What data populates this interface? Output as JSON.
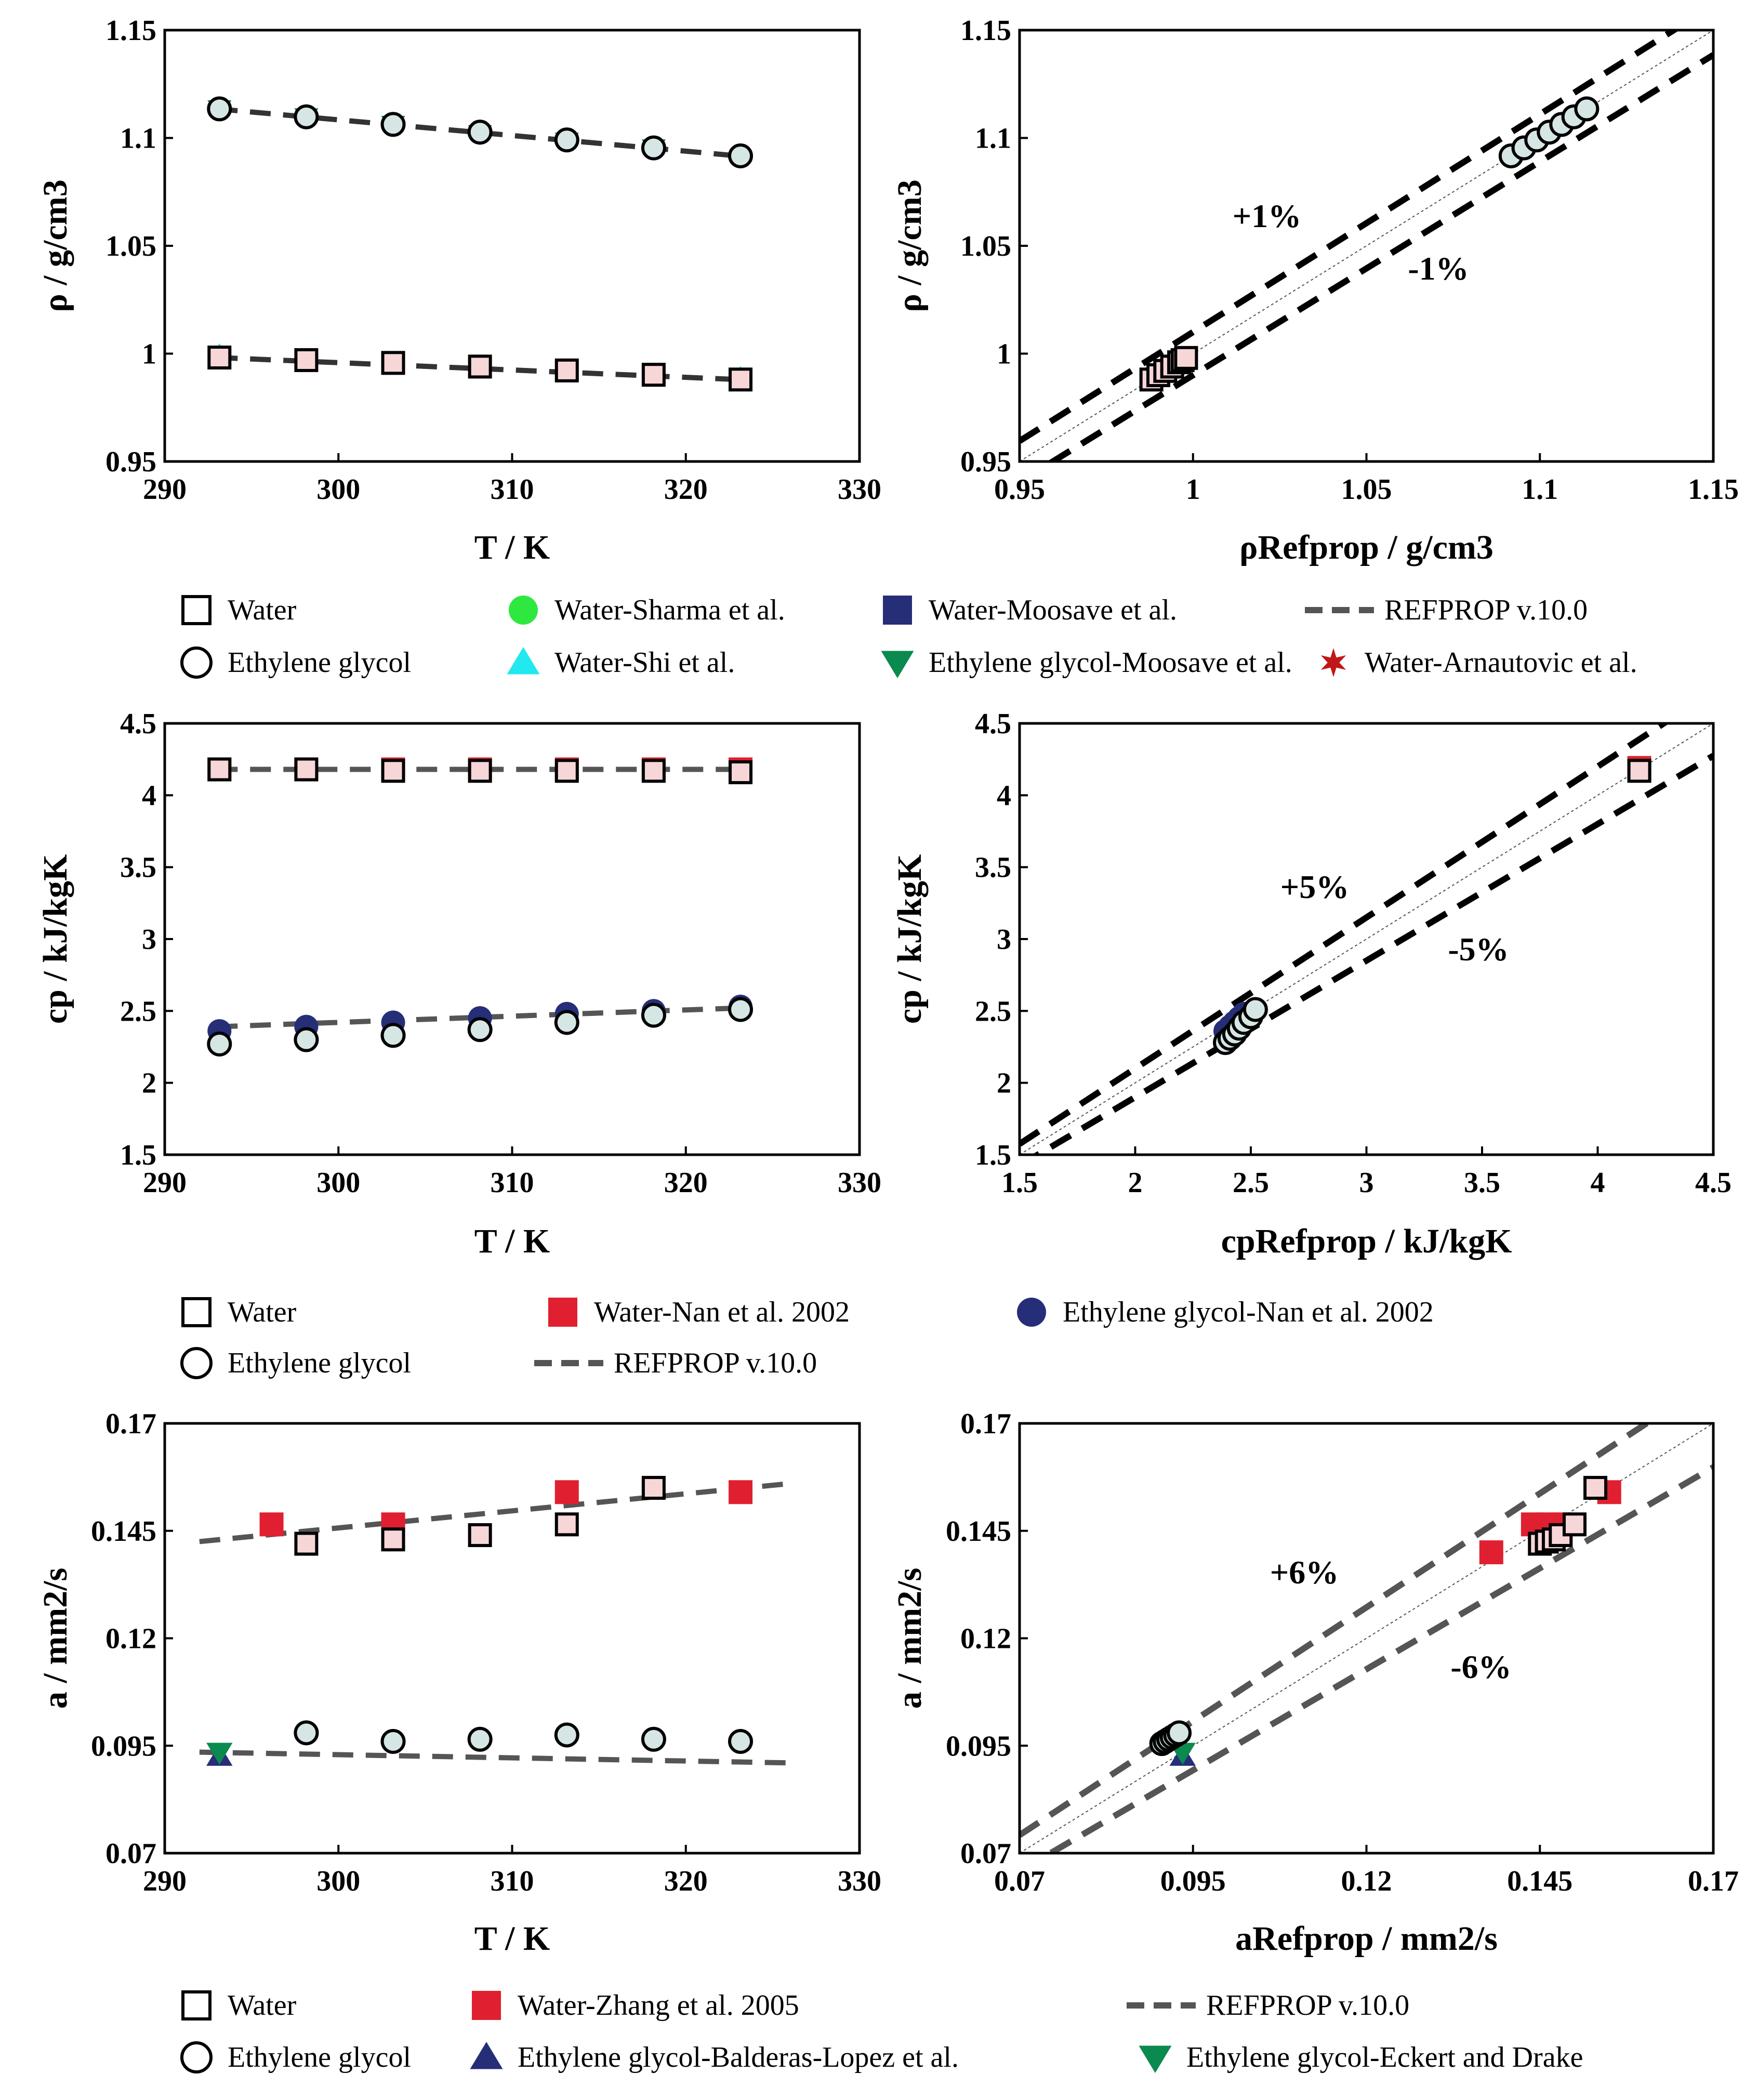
{
  "colors": {
    "water_fill": "#f7d6d8",
    "eg_fill": "#d6e6e4",
    "red": "#e02030",
    "navy": "#262e78",
    "green": "#2ee840",
    "cyan": "#22e8f0",
    "dgreen": "#0a8a4e",
    "star": "#c01818",
    "dash": "#555555"
  },
  "legends": [
    {
      "items": [
        {
          "label": "Water",
          "symbol": "open-square"
        },
        {
          "label": "Water-Sharma et al.",
          "symbol": "green-circle"
        },
        {
          "label": "Water-Moosave et al.",
          "symbol": "navy-square"
        },
        {
          "label": "REFPROP v.10.0",
          "symbol": "dash-line"
        },
        {
          "label": "Ethylene glycol",
          "symbol": "open-circle"
        },
        {
          "label": "Water-Shi et al.",
          "symbol": "cyan-triangle-up"
        },
        {
          "label": "Ethylene glycol-Moosave et al.",
          "symbol": "green-triangle-down"
        },
        {
          "label": "Water-Arnautovic et al.",
          "symbol": "red-star"
        }
      ]
    },
    {
      "items": [
        {
          "label": "Water",
          "symbol": "open-square"
        },
        {
          "label": "Water-Nan et al. 2002",
          "symbol": "red-square"
        },
        {
          "label": "Ethylene glycol-Nan et al. 2002",
          "symbol": "navy-circle"
        },
        {
          "label": "Ethylene glycol",
          "symbol": "open-circle"
        },
        {
          "label": "REFPROP v.10.0",
          "symbol": "dash-line"
        }
      ]
    },
    {
      "items": [
        {
          "label": "Water",
          "symbol": "open-square"
        },
        {
          "label": "Water-Zhang et al. 2005",
          "symbol": "red-square"
        },
        {
          "label": "REFPROP v.10.0",
          "symbol": "dash-line"
        },
        {
          "label": "Ethylene glycol",
          "symbol": "open-circle"
        },
        {
          "label": "Ethylene glycol-Balderas-Lopez et al.",
          "symbol": "navy-triangle-up"
        },
        {
          "label": "Ethylene glycol-Eckert and Drake",
          "symbol": "green-triangle-down"
        }
      ]
    }
  ],
  "chart_data": [
    {
      "id": "density-vs-T",
      "type": "scatter",
      "xlabel": "T / K",
      "ylabel": "ρ / g/cm3",
      "xlim": [
        290,
        330
      ],
      "ylim": [
        0.95,
        1.15
      ],
      "xticks": [
        "290",
        "300",
        "310",
        "320",
        "330"
      ],
      "yticks": [
        "0.95",
        "1",
        "1.05",
        "1.1",
        "1.15"
      ],
      "series": [
        {
          "name": "Water",
          "x": [
            293.15,
            298.15,
            303.15,
            308.15,
            313.15,
            318.15,
            323.15
          ],
          "y": [
            0.9982,
            0.997,
            0.9957,
            0.994,
            0.9922,
            0.9902,
            0.988
          ]
        },
        {
          "name": "Ethylene glycol",
          "x": [
            293.15,
            298.15,
            303.15,
            308.15,
            313.15,
            318.15,
            323.15
          ],
          "y": [
            1.1135,
            1.1098,
            1.1063,
            1.1027,
            1.0991,
            1.0954,
            1.0917
          ]
        },
        {
          "name": "Water-Sharma et al.",
          "x": [
            293.15,
            298.15,
            303.15,
            308.15,
            313.15
          ],
          "y": [
            0.9982,
            0.997,
            0.9957,
            0.994,
            0.9922
          ]
        },
        {
          "name": "Water-Shi et al.",
          "x": [
            293.15,
            303.15,
            313.15,
            323.15
          ],
          "y": [
            0.9995,
            0.996,
            0.9925,
            0.989
          ]
        },
        {
          "name": "Water-Moosave et al.",
          "x": [
            318.15
          ],
          "y": [
            0.9902
          ]
        },
        {
          "name": "Ethylene glycol-Moosave et al.",
          "x": [
            293.15,
            298.15,
            303.15,
            308.15,
            313.15,
            318.15
          ],
          "y": [
            1.1135,
            1.1098,
            1.1063,
            1.102,
            1.0985,
            1.0954
          ]
        },
        {
          "name": "REFPROP v.10.0 water",
          "x": [
            293,
            323
          ],
          "y": [
            0.9982,
            0.988
          ]
        },
        {
          "name": "REFPROP v.10.0 ethylene glycol",
          "x": [
            293,
            323
          ],
          "y": [
            1.1135,
            1.0917
          ]
        }
      ]
    },
    {
      "id": "density-parity",
      "type": "scatter",
      "xlabel": "ρRefprop / g/cm3",
      "ylabel": "ρ / g/cm3",
      "xlim": [
        0.95,
        1.15
      ],
      "ylim": [
        0.95,
        1.15
      ],
      "xticks": [
        "0.95",
        "1",
        "1.05",
        "1.1",
        "1.15"
      ],
      "yticks": [
        "0.95",
        "1",
        "1.05",
        "1.1",
        "1.15"
      ],
      "annotations": [
        "+1%",
        "-1%"
      ],
      "series": [
        {
          "name": "Water",
          "x": [
            0.988,
            0.99,
            0.992,
            0.994,
            0.996,
            0.997,
            0.998
          ],
          "y": [
            0.988,
            0.99,
            0.992,
            0.994,
            0.996,
            0.997,
            0.998
          ]
        },
        {
          "name": "Ethylene glycol",
          "x": [
            1.0917,
            1.0954,
            1.0991,
            1.1027,
            1.1063,
            1.1098,
            1.1135
          ],
          "y": [
            1.0917,
            1.0954,
            1.0991,
            1.1027,
            1.1063,
            1.1098,
            1.1135
          ]
        }
      ]
    },
    {
      "id": "cp-vs-T",
      "type": "scatter",
      "xlabel": "T / K",
      "ylabel": "cp / kJ/kgK",
      "xlim": [
        290,
        330
      ],
      "ylim": [
        1.5,
        4.5
      ],
      "xticks": [
        "290",
        "300",
        "310",
        "320",
        "330"
      ],
      "yticks": [
        "1.5",
        "2",
        "2.5",
        "3",
        "3.5",
        "4",
        "4.5"
      ],
      "series": [
        {
          "name": "Water",
          "x": [
            293.15,
            298.15,
            303.15,
            308.15,
            313.15,
            318.15,
            323.15
          ],
          "y": [
            4.18,
            4.18,
            4.17,
            4.17,
            4.17,
            4.17,
            4.16
          ]
        },
        {
          "name": "Water-Nan et al. 2002",
          "x": [
            293.15,
            298.15,
            303.15,
            308.15,
            313.15,
            318.15,
            323.15
          ],
          "y": [
            4.18,
            4.18,
            4.18,
            4.18,
            4.18,
            4.18,
            4.18
          ]
        },
        {
          "name": "Ethylene glycol",
          "x": [
            293.15,
            298.15,
            303.15,
            308.15,
            313.15,
            318.15,
            323.15
          ],
          "y": [
            2.27,
            2.3,
            2.33,
            2.37,
            2.42,
            2.47,
            2.51
          ]
        },
        {
          "name": "Ethylene glycol-Nan et al. 2002",
          "x": [
            293.15,
            298.15,
            303.15,
            308.15,
            313.15,
            318.15,
            323.15
          ],
          "y": [
            2.36,
            2.39,
            2.42,
            2.45,
            2.48,
            2.5,
            2.53
          ]
        },
        {
          "name": "REFPROP v.10.0 water",
          "x": [
            293,
            323
          ],
          "y": [
            4.18,
            4.18
          ]
        },
        {
          "name": "REFPROP v.10.0 ethylene glycol",
          "x": [
            293,
            323
          ],
          "y": [
            2.39,
            2.52
          ]
        }
      ]
    },
    {
      "id": "cp-parity",
      "type": "scatter",
      "xlabel": "cpRefprop / kJ/kgK",
      "ylabel": "cp / kJ/kgK",
      "xlim": [
        1.5,
        4.5
      ],
      "ylim": [
        1.5,
        4.5
      ],
      "xticks": [
        "1.5",
        "2",
        "2.5",
        "3",
        "3.5",
        "4",
        "4.5"
      ],
      "yticks": [
        "1.5",
        "2",
        "2.5",
        "3",
        "3.5",
        "4",
        "4.5"
      ],
      "annotations": [
        "+5%",
        "-5%"
      ],
      "series": [
        {
          "name": "Water",
          "x": [
            4.18
          ],
          "y": [
            4.17
          ]
        },
        {
          "name": "Water-Nan et al. 2002",
          "x": [
            4.18
          ],
          "y": [
            4.19
          ]
        },
        {
          "name": "Ethylene glycol",
          "x": [
            2.39,
            2.41,
            2.43,
            2.45,
            2.47,
            2.5,
            2.52
          ],
          "y": [
            2.28,
            2.31,
            2.34,
            2.38,
            2.42,
            2.46,
            2.51
          ]
        },
        {
          "name": "Ethylene glycol-Nan et al. 2002",
          "x": [
            2.39,
            2.41,
            2.43,
            2.45,
            2.47
          ],
          "y": [
            2.36,
            2.39,
            2.42,
            2.45,
            2.48
          ]
        }
      ]
    },
    {
      "id": "diffusivity-vs-T",
      "type": "scatter",
      "xlabel": "T / K",
      "ylabel": "a / mm2/s",
      "xlim": [
        290,
        330
      ],
      "ylim": [
        0.07,
        0.17
      ],
      "xticks": [
        "290",
        "300",
        "310",
        "320",
        "330"
      ],
      "yticks": [
        "0.07",
        "0.095",
        "0.12",
        "0.145",
        "0.17"
      ],
      "series": [
        {
          "name": "Water",
          "x": [
            298.15,
            303.15,
            308.15,
            313.15,
            318.15
          ],
          "y": [
            0.142,
            0.143,
            0.144,
            0.1465,
            0.155
          ]
        },
        {
          "name": "Water-Zhang et al. 2005",
          "x": [
            296.15,
            303.15,
            313.15,
            323.15
          ],
          "y": [
            0.1465,
            0.1465,
            0.154,
            0.154
          ]
        },
        {
          "name": "Ethylene glycol",
          "x": [
            298.15,
            303.15,
            308.15,
            313.15,
            318.15,
            323.15
          ],
          "y": [
            0.098,
            0.096,
            0.0965,
            0.0975,
            0.0965,
            0.096
          ]
        },
        {
          "name": "Ethylene glycol-Balderas-Lopez et al.",
          "x": [
            293.15
          ],
          "y": [
            0.0925
          ]
        },
        {
          "name": "Ethylene glycol-Eckert and Drake",
          "x": [
            293.15
          ],
          "y": [
            0.0935
          ]
        },
        {
          "name": "REFPROP v.10.0 water",
          "x": [
            292,
            326
          ],
          "y": [
            0.1425,
            0.156
          ]
        },
        {
          "name": "REFPROP v.10.0 ethylene glycol",
          "x": [
            292,
            326
          ],
          "y": [
            0.0935,
            0.091
          ]
        }
      ]
    },
    {
      "id": "diffusivity-parity",
      "type": "scatter",
      "xlabel": "aRefprop / mm2/s",
      "ylabel": "a / mm2/s",
      "xlim": [
        0.07,
        0.17
      ],
      "ylim": [
        0.07,
        0.17
      ],
      "xticks": [
        "0.07",
        "0.095",
        "0.12",
        "0.145",
        "0.17"
      ],
      "yticks": [
        "0.07",
        "0.095",
        "0.12",
        "0.145",
        "0.17"
      ],
      "annotations": [
        "+6%",
        "-6%"
      ],
      "series": [
        {
          "name": "Water",
          "x": [
            0.145,
            0.146,
            0.147,
            0.148,
            0.15,
            0.153
          ],
          "y": [
            0.142,
            0.1425,
            0.143,
            0.144,
            0.1465,
            0.155
          ]
        },
        {
          "name": "Water-Zhang et al. 2005",
          "x": [
            0.138,
            0.144,
            0.146,
            0.148,
            0.155
          ],
          "y": [
            0.14,
            0.1465,
            0.1465,
            0.1465,
            0.154
          ]
        },
        {
          "name": "Ethylene glycol",
          "x": [
            0.0905,
            0.091,
            0.0915,
            0.092,
            0.0925,
            0.093
          ],
          "y": [
            0.0955,
            0.096,
            0.0965,
            0.097,
            0.0975,
            0.098
          ]
        },
        {
          "name": "Ethylene glycol-Balderas-Lopez et al.",
          "x": [
            0.0935
          ],
          "y": [
            0.0925
          ]
        },
        {
          "name": "Ethylene glycol-Eckert and Drake",
          "x": [
            0.0935
          ],
          "y": [
            0.0935
          ]
        }
      ]
    }
  ]
}
